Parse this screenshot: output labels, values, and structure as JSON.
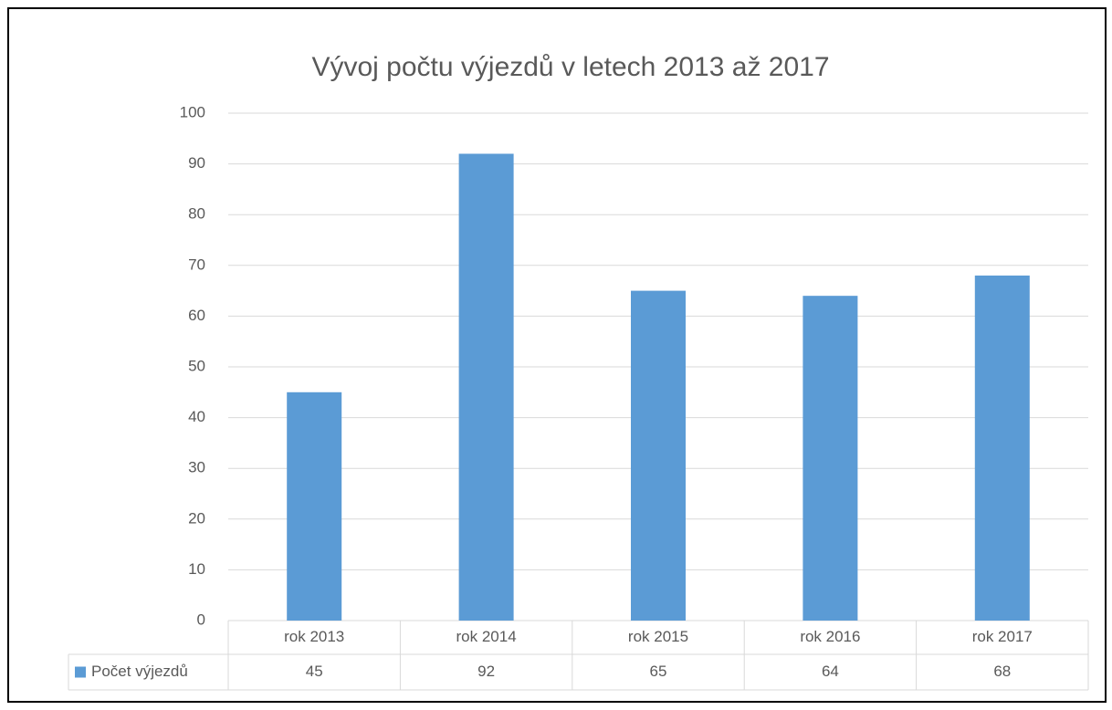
{
  "chart_data": {
    "type": "bar",
    "title": "Vývoj počtu výjezdů v letech 2013 až 2017",
    "categories": [
      "rok 2013",
      "rok 2014",
      "rok 2015",
      "rok 2016",
      "rok 2017"
    ],
    "series": [
      {
        "name": "Počet výjezdů",
        "color": "#5b9bd5",
        "values": [
          45,
          92,
          65,
          64,
          68
        ]
      }
    ],
    "ylim": [
      0,
      100
    ],
    "yticks": [
      0,
      10,
      20,
      30,
      40,
      50,
      60,
      70,
      80,
      90,
      100
    ],
    "grid": true,
    "data_table": true
  }
}
